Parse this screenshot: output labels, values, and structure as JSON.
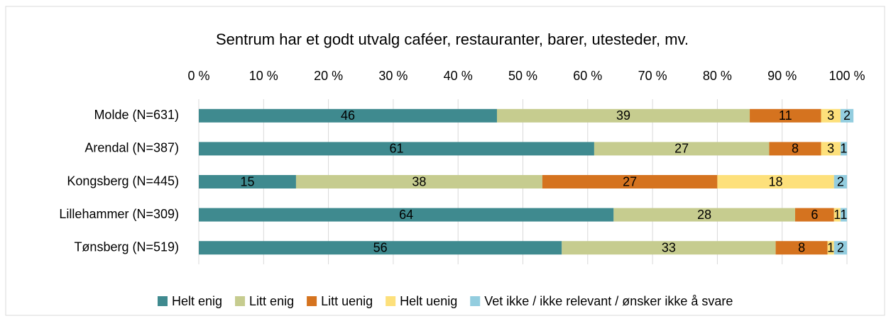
{
  "chart_data": {
    "type": "stacked-bar-horizontal",
    "title": "Sentrum har et godt utvalg caféer, restauranter, barer, utesteder, mv.",
    "categories": [
      "Molde (N=631)",
      "Arendal (N=387)",
      "Kongsberg (N=445)",
      "Lillehammer (N=309)",
      "Tønsberg (N=519)"
    ],
    "series": [
      {
        "name": "Helt enig",
        "color": "#3f8a8f",
        "values": [
          46,
          61,
          15,
          64,
          56
        ]
      },
      {
        "name": "Litt enig",
        "color": "#c6cc8f",
        "values": [
          39,
          27,
          38,
          28,
          33
        ]
      },
      {
        "name": "Litt uenig",
        "color": "#d5731f",
        "values": [
          11,
          8,
          27,
          6,
          8
        ]
      },
      {
        "name": "Helt uenig",
        "color": "#fde07b",
        "values": [
          3,
          3,
          18,
          1,
          1
        ]
      },
      {
        "name": "Vet ikke / ikke relevant / ønsker ikke å svare",
        "color": "#93cddf",
        "values": [
          2,
          1,
          2,
          1,
          2
        ]
      }
    ],
    "xlim": [
      0,
      100
    ],
    "xticks": [
      {
        "value": 0,
        "label": "0 %"
      },
      {
        "value": 10,
        "label": "10 %"
      },
      {
        "value": 20,
        "label": "20 %"
      },
      {
        "value": 30,
        "label": "30 %"
      },
      {
        "value": 40,
        "label": "40 %"
      },
      {
        "value": 50,
        "label": "50 %"
      },
      {
        "value": 60,
        "label": "60 %"
      },
      {
        "value": 70,
        "label": "70 %"
      },
      {
        "value": 80,
        "label": "80 %"
      },
      {
        "value": 90,
        "label": "90 %"
      },
      {
        "value": 100,
        "label": "100 %"
      }
    ],
    "grid": true,
    "legend": "bottom"
  }
}
